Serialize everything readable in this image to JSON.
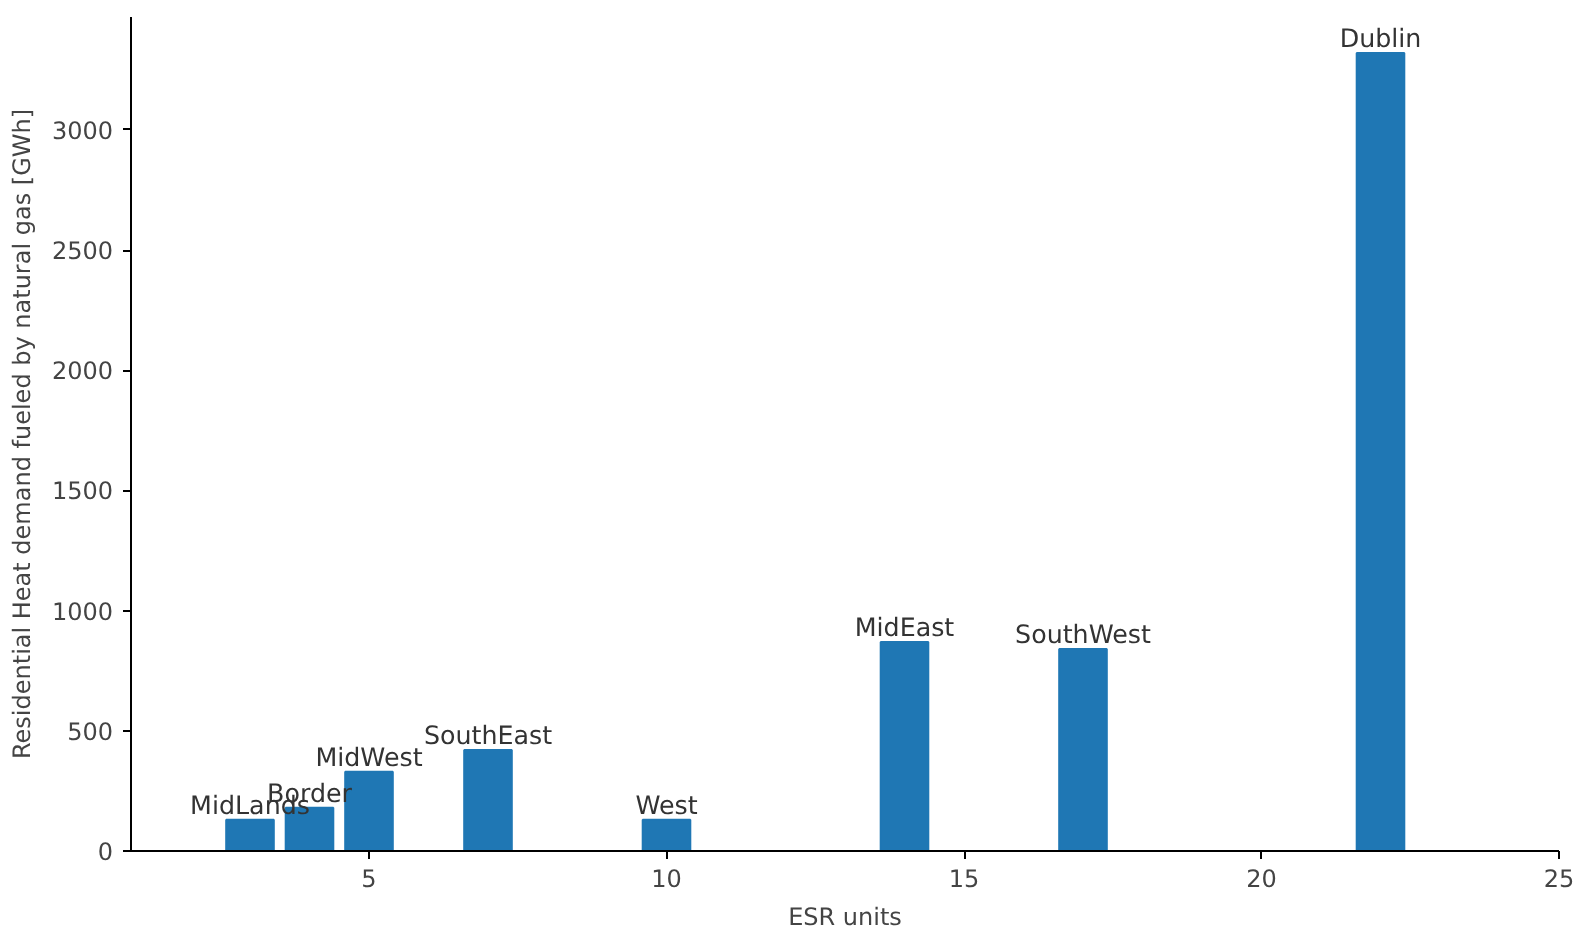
{
  "chart_data": {
    "type": "bar",
    "xlabel": "ESR units",
    "ylabel": "Residential Heat demand fueled by natural gas [GWh]",
    "x": [
      3,
      4,
      5,
      7,
      10,
      14,
      17,
      22
    ],
    "values": [
      130,
      180,
      330,
      420,
      130,
      870,
      840,
      3320
    ],
    "color": "#1f77b4",
    "xlim": [
      1,
      25
    ],
    "xticks": [
      5,
      10,
      15,
      20,
      25
    ],
    "ylim": [
      0,
      3470
    ],
    "yticks": [
      0,
      500,
      1000,
      1500,
      2000,
      2500,
      3000
    ],
    "grid": false,
    "annotations": [
      {
        "text": "MidLands",
        "x": 3,
        "y": 130
      },
      {
        "text": "Border",
        "x": 4,
        "y": 180
      },
      {
        "text": "MidWest",
        "x": 5,
        "y": 330
      },
      {
        "text": "SouthEast",
        "x": 7,
        "y": 420
      },
      {
        "text": "West",
        "x": 10,
        "y": 130
      },
      {
        "text": "MidEast",
        "x": 14,
        "y": 870
      },
      {
        "text": "SouthWest",
        "x": 17,
        "y": 840
      },
      {
        "text": "Dublin",
        "x": 22,
        "y": 3320
      }
    ]
  }
}
